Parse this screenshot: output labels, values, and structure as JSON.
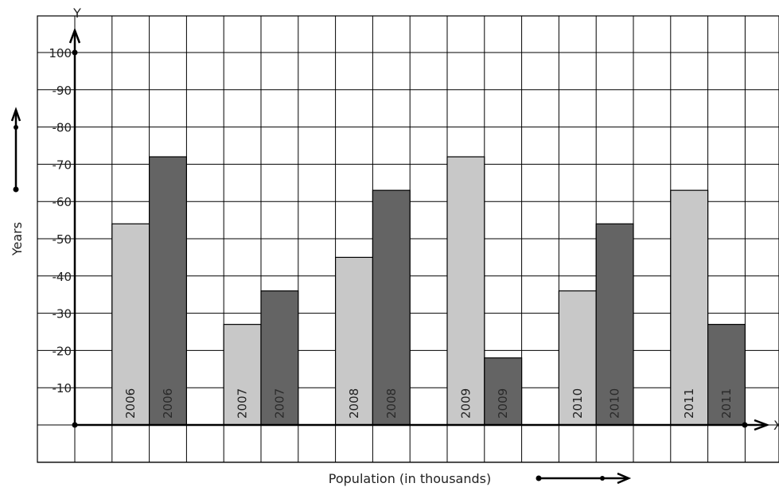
{
  "chart_data": {
    "type": "bar",
    "categories": [
      "2006",
      "2007",
      "2008",
      "2009",
      "2010",
      "2011"
    ],
    "series": [
      {
        "values": [
          54,
          27,
          45,
          72,
          36,
          63
        ],
        "color": "#c8c8c8"
      },
      {
        "values": [
          72,
          36,
          63,
          18,
          54,
          27
        ],
        "color": "#646464"
      }
    ],
    "xlabel": "Population (in thousands)",
    "ylabel": "Years",
    "x_axis_letter": "X",
    "y_axis_letter": "Y",
    "y_ticks": [
      10,
      20,
      30,
      40,
      50,
      60,
      70,
      80,
      90,
      100
    ],
    "ylim": [
      -10,
      110
    ],
    "grid": true,
    "bar_label_colors": {
      "light": "#222222",
      "dark": "#2a2a2a"
    }
  }
}
